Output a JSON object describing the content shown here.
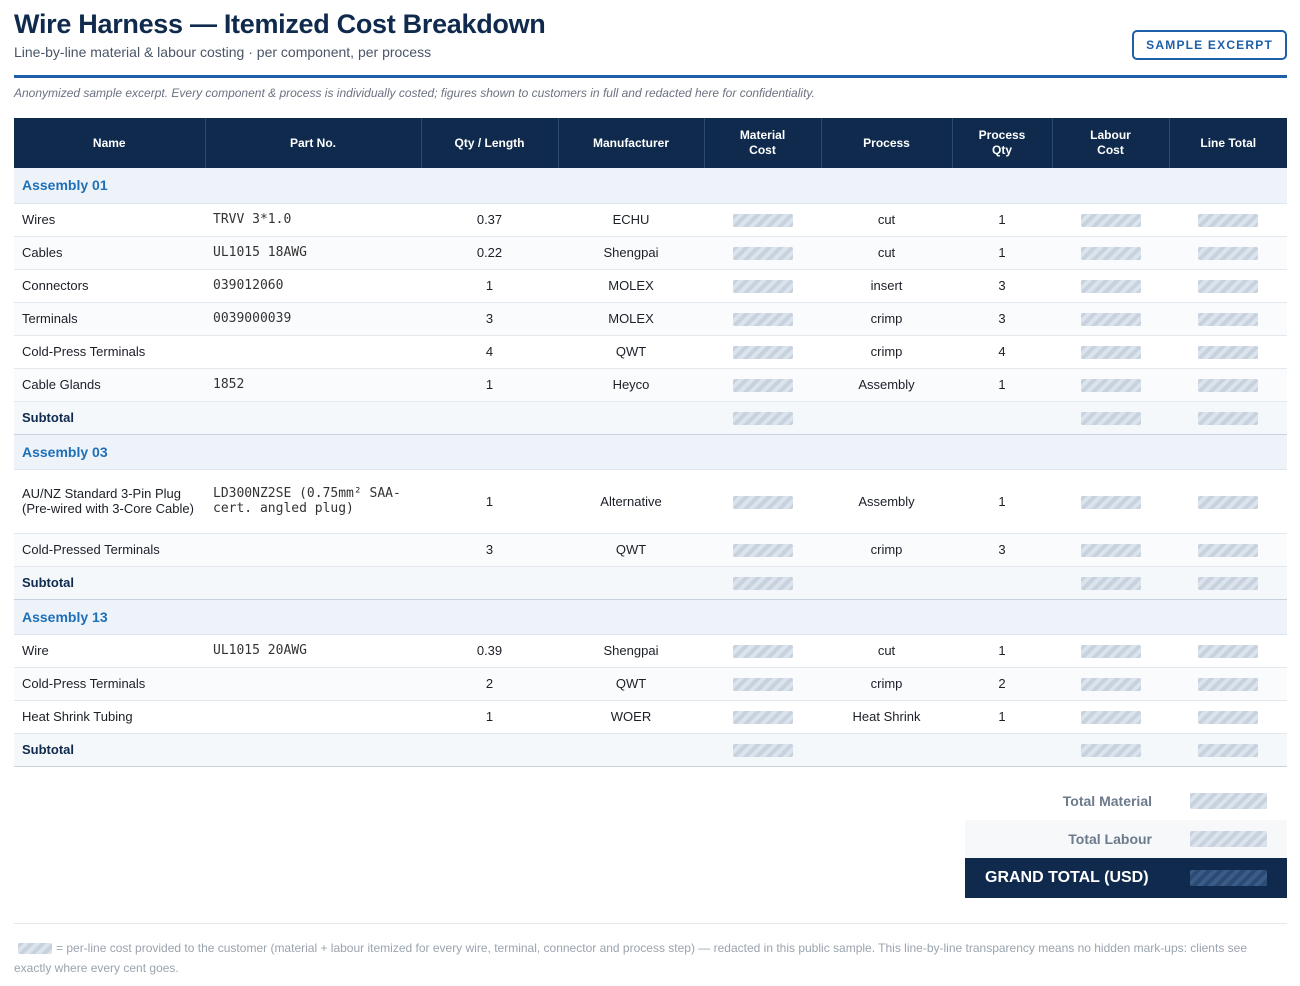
{
  "header": {
    "title": "Wire Harness — Itemized Cost Breakdown",
    "subtitle": "Line-by-line material & labour costing · per component, per process",
    "badge": "SAMPLE EXCERPT"
  },
  "note": "Anonymized sample excerpt. Every component & process is individually costed; figures shown to customers in full and redacted here for confidentiality.",
  "table": {
    "columns": {
      "name": "Name",
      "part": "Part No.",
      "qty": "Qty / Length",
      "manufacturer": "Manufacturer",
      "material_a": "Material",
      "material_b": "Cost",
      "process": "Process",
      "process_qty_a": "Process",
      "process_qty_b": "Qty",
      "labour_a": "Labour",
      "labour_b": "Cost",
      "line_total": "Line Total"
    },
    "subtotal_label": "Subtotal",
    "groups": [
      {
        "title": "Assembly 01",
        "rows": [
          {
            "name": "Wires",
            "part": "TRVV 3*1.0",
            "qty": "0.37",
            "mfr": "ECHU",
            "process": "cut",
            "pqty": "1"
          },
          {
            "name": "Cables",
            "part": "UL1015 18AWG",
            "qty": "0.22",
            "mfr": "Shengpai",
            "process": "cut",
            "pqty": "1"
          },
          {
            "name": "Connectors",
            "part": "039012060",
            "qty": "1",
            "mfr": "MOLEX",
            "process": "insert",
            "pqty": "3"
          },
          {
            "name": "Terminals",
            "part": "0039000039",
            "qty": "3",
            "mfr": "MOLEX",
            "process": "crimp",
            "pqty": "3"
          },
          {
            "name": "Cold-Press Terminals",
            "part": "",
            "qty": "4",
            "mfr": "QWT",
            "process": "crimp",
            "pqty": "4"
          },
          {
            "name": "Cable Glands",
            "part": "1852",
            "qty": "1",
            "mfr": "Heyco",
            "process": "Assembly",
            "pqty": "1"
          }
        ]
      },
      {
        "title": "Assembly 03",
        "rows": [
          {
            "name": "AU/NZ Standard 3-Pin Plug (Pre-wired with 3-Core Cable)",
            "part": "LD300NZ2SE (0.75mm² SAA-cert. angled plug)",
            "qty": "1",
            "mfr": "Alternative",
            "process": "Assembly",
            "pqty": "1"
          },
          {
            "name": "Cold-Pressed Terminals",
            "part": "",
            "qty": "3",
            "mfr": "QWT",
            "process": "crimp",
            "pqty": "3"
          }
        ]
      },
      {
        "title": "Assembly 13",
        "rows": [
          {
            "name": "Wire",
            "part": "UL1015 20AWG",
            "qty": "0.39",
            "mfr": "Shengpai",
            "process": "cut",
            "pqty": "1"
          },
          {
            "name": "Cold-Press Terminals",
            "part": "",
            "qty": "2",
            "mfr": "QWT",
            "process": "crimp",
            "pqty": "2"
          },
          {
            "name": "Heat Shrink Tubing",
            "part": "",
            "qty": "1",
            "mfr": "WOER",
            "process": "Heat Shrink",
            "pqty": "1"
          }
        ]
      }
    ]
  },
  "totals": {
    "material": "Total Material",
    "labour": "Total Labour",
    "grand": "GRAND TOTAL (USD)"
  },
  "footer": {
    "text": "= per-line cost provided to the customer (material + labour itemized for every wire, terminal, connector and process step) — redacted in this public sample. This line-by-line transparency means no hidden mark-ups: clients see exactly where every cent goes."
  }
}
